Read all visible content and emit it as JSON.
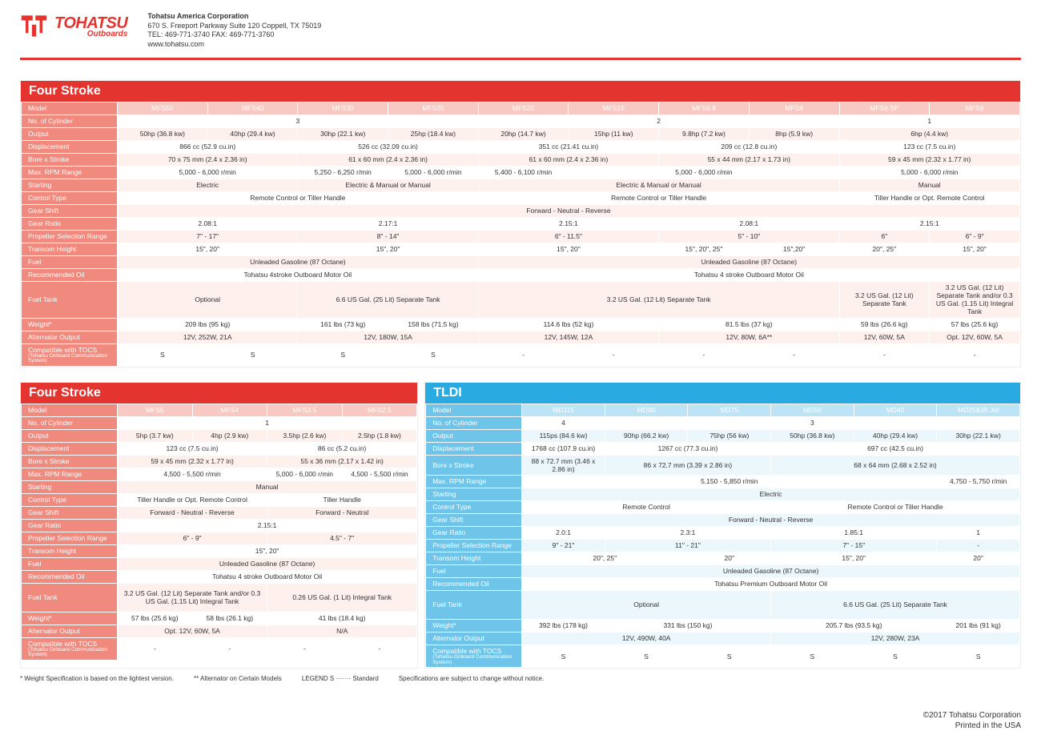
{
  "company": {
    "name": "Tohatsu America Corporation",
    "addr": "670 S. Freeport Parkway Suite 120 Coppell, TX 75019",
    "tel": "TEL: 469-771-3740 FAX: 469-771-3760",
    "web": "www.tohatsu.com"
  },
  "logo": {
    "brand": "TOHATSU",
    "sub": "Outboards"
  },
  "sheet1": {
    "title": "Four Stroke",
    "models": [
      "MFS50",
      "MFS40",
      "MFS30",
      "MFS25",
      "MFS20",
      "MFS15",
      "MFS9.8",
      "MFS8",
      "MFS6 SP",
      "MFS6"
    ],
    "rows": [
      {
        "l": "No. of Cylinder",
        "c": [
          {
            "t": "3",
            "s": 4
          },
          {
            "t": "2",
            "s": 4
          },
          {
            "t": "1",
            "s": 2
          }
        ]
      },
      {
        "l": "Output",
        "c": [
          {
            "t": "50hp (36.8 kw)"
          },
          {
            "t": "40hp (29.4 kw)"
          },
          {
            "t": "30hp (22.1 kw)"
          },
          {
            "t": "25hp (18.4 kw)"
          },
          {
            "t": "20hp (14.7 kw)"
          },
          {
            "t": "15hp (11 kw)"
          },
          {
            "t": "9.8hp (7.2 kw)"
          },
          {
            "t": "8hp (5.9 kw)"
          },
          {
            "t": "6hp (4.4 kw)",
            "s": 2
          }
        ]
      },
      {
        "l": "Displacement",
        "c": [
          {
            "t": "866 cc (52.9 cu.in)",
            "s": 2
          },
          {
            "t": "526 cc (32.09 cu.in)",
            "s": 2
          },
          {
            "t": "351 cc  (21.41 cu.in)",
            "s": 2
          },
          {
            "t": "209 cc  (12.8 cu.in)",
            "s": 2
          },
          {
            "t": "123 cc (7.5 cu.in)",
            "s": 2
          }
        ]
      },
      {
        "l": "Bore x Stroke",
        "c": [
          {
            "t": "70 x 75 mm (2.4 x 2.36 in)",
            "s": 2
          },
          {
            "t": "61 x 60 mm (2.4 x 2.36 in)",
            "s": 2
          },
          {
            "t": "61 x 60 mm (2.4 x 2.36 in)",
            "s": 2
          },
          {
            "t": "55 x 44 mm (2.17 x 1.73 in)",
            "s": 2
          },
          {
            "t": "59 x 45 mm  (2.32 x 1.77 in)",
            "s": 2
          }
        ]
      },
      {
        "l": "Max. RPM Range",
        "c": [
          {
            "t": "5,000 - 6,000 r/min",
            "s": 2
          },
          {
            "t": "5,250 - 6,250 r/min"
          },
          {
            "t": "5,000 - 6,000 r/min"
          },
          {
            "t": "5,400 - 6,100 r/min"
          },
          {
            "t": "5,000 - 6,000 r/min",
            "s": 3
          },
          {
            "t": "",
            "s": 0
          },
          {
            "t": "5,000 - 6,000 r/min",
            "s": 2
          }
        ]
      },
      {
        "l": "Starting",
        "c": [
          {
            "t": "Electric",
            "s": 2
          },
          {
            "t": "Electric & Manual or Manual",
            "s": 2
          },
          {
            "t": "Electric & Manual or Manual",
            "s": 4
          },
          {
            "t": "Manual",
            "s": 2
          }
        ]
      },
      {
        "l": "Control Type",
        "c": [
          {
            "t": "Remote Control or Tiller Handle",
            "s": 4
          },
          {
            "t": "Remote Control or Tiller Handle",
            "s": 4
          },
          {
            "t": "Tiller Handle or Opt. Remote Control",
            "s": 2
          }
        ]
      },
      {
        "l": "Gear Shift",
        "c": [
          {
            "t": "Forward - Neutral - Reverse",
            "s": 10
          }
        ]
      },
      {
        "l": "Gear Ratio",
        "c": [
          {
            "t": "2.08:1",
            "s": 2
          },
          {
            "t": "2.17:1",
            "s": 2
          },
          {
            "t": "2.15:1",
            "s": 2
          },
          {
            "t": "2.08:1",
            "s": 2
          },
          {
            "t": "2.15:1",
            "s": 2
          }
        ]
      },
      {
        "l": "Propeller Selection Range",
        "c": [
          {
            "t": "7\" - 17\"",
            "s": 2
          },
          {
            "t": "8\" - 14\"",
            "s": 2
          },
          {
            "t": "6\" - 11.5\"",
            "s": 2
          },
          {
            "t": "5\" - 10\"",
            "s": 2
          },
          {
            "t": "6\""
          },
          {
            "t": "6\" - 9\""
          }
        ]
      },
      {
        "l": "Transom Height",
        "c": [
          {
            "t": "15\", 20\"",
            "s": 2
          },
          {
            "t": "15\", 20\"",
            "s": 2
          },
          {
            "t": "15\", 20\"",
            "s": 2
          },
          {
            "t": "15\", 20\", 25\""
          },
          {
            "t": "15\",20\""
          },
          {
            "t": "20\", 25\""
          },
          {
            "t": "15\", 20\""
          }
        ]
      },
      {
        "l": "Fuel",
        "c": [
          {
            "t": "Unleaded Gasoline (87 Octane)",
            "s": 4
          },
          {
            "t": "Unleaded Gasoline (87 Octane)",
            "s": 6
          }
        ]
      },
      {
        "l": "Recommended Oil",
        "c": [
          {
            "t": "Tohatsu 4stroke Outboard Motor Oil",
            "s": 4
          },
          {
            "t": "Tohatsu 4 stroke Outboard Motor Oil",
            "s": 6
          }
        ]
      },
      {
        "l": "Fuel Tank",
        "h": 1,
        "c": [
          {
            "t": "Optional",
            "s": 2
          },
          {
            "t": "6.6 US Gal. (25 Lit) Separate Tank",
            "s": 2
          },
          {
            "t": "3.2 US Gal. (12 Lit) Separate Tank",
            "s": 4
          },
          {
            "t": "3.2 US Gal. (12 Lit) Separate Tank"
          },
          {
            "t": "3.2 US Gal. (12 Lit) Separate Tank and/or 0.3 US Gal. (1.15 Lit) Integral Tank"
          }
        ]
      },
      {
        "l": "Weight*",
        "c": [
          {
            "t": "209 lbs (95 kg)",
            "s": 2
          },
          {
            "t": "161 lbs (73 kg)"
          },
          {
            "t": "158 lbs (71.5 kg)"
          },
          {
            "t": "114.6 lbs (52 kg)",
            "s": 2
          },
          {
            "t": "81.5 lbs (37 kg)",
            "s": 2
          },
          {
            "t": "59 lbs (26.6 kg)"
          },
          {
            "t": "57 lbs (25.6 kg)"
          }
        ]
      },
      {
        "l": "Alternator Output",
        "c": [
          {
            "t": "12V, 252W, 21A",
            "s": 2
          },
          {
            "t": "12V, 180W, 15A",
            "s": 2
          },
          {
            "t": "12V, 145W, 12A",
            "s": 2
          },
          {
            "t": "12V, 80W, 6A**",
            "s": 2
          },
          {
            "t": "12V, 60W, 5A"
          },
          {
            "t": "Opt. 12V, 60W, 5A"
          }
        ]
      },
      {
        "l": "Compatible with TOCS",
        "sub": "(Tohatsu Onboard Communication System)",
        "c": [
          {
            "t": "S"
          },
          {
            "t": "S"
          },
          {
            "t": "S"
          },
          {
            "t": "S"
          },
          {
            "t": "-"
          },
          {
            "t": "-"
          },
          {
            "t": "-"
          },
          {
            "t": "-"
          },
          {
            "t": "-"
          },
          {
            "t": "-"
          }
        ]
      }
    ]
  },
  "sheet2": {
    "title": "Four Stroke",
    "models": [
      "MFS5",
      "MFS4",
      "MFS3.5",
      "MFS2.5"
    ],
    "rows": [
      {
        "l": "No. of Cylinder",
        "c": [
          {
            "t": "1",
            "s": 4
          }
        ]
      },
      {
        "l": "Output",
        "c": [
          {
            "t": "5hp (3.7 kw)"
          },
          {
            "t": "4hp (2.9 kw)"
          },
          {
            "t": "3.5hp (2.6 kw)"
          },
          {
            "t": "2.5hp (1.8 kw)"
          }
        ]
      },
      {
        "l": "Displacement",
        "c": [
          {
            "t": "123 cc (7.5 cu.in)",
            "s": 2
          },
          {
            "t": "86 cc  (5.2 cu.in)",
            "s": 2
          }
        ]
      },
      {
        "l": "Bore x Stroke",
        "c": [
          {
            "t": "59 x 45 mm  (2.32 x 1.77 in)",
            "s": 2
          },
          {
            "t": "55 x 36 mm (2.17 x 1.42 in)",
            "s": 2
          }
        ]
      },
      {
        "l": "Max. RPM Range",
        "c": [
          {
            "t": "4,500 - 5,500 r/min",
            "s": 2
          },
          {
            "t": "5,000 - 6,000 r/min"
          },
          {
            "t": "4,500 - 5,500 r/min"
          }
        ]
      },
      {
        "l": "Starting",
        "c": [
          {
            "t": "Manual",
            "s": 4
          }
        ]
      },
      {
        "l": "Control Type",
        "c": [
          {
            "t": "Tiller Handle or Opt. Remote Control",
            "s": 2
          },
          {
            "t": "Tiller Handle",
            "s": 2
          }
        ]
      },
      {
        "l": "Gear Shift",
        "c": [
          {
            "t": "Forward - Neutral - Reverse",
            "s": 2
          },
          {
            "t": "Forward - Neutral",
            "s": 2
          }
        ]
      },
      {
        "l": "Gear Ratio",
        "c": [
          {
            "t": "2.15:1",
            "s": 4
          }
        ]
      },
      {
        "l": "Propeller Selection Range",
        "c": [
          {
            "t": "6\" - 9\"",
            "s": 2
          },
          {
            "t": "4.5\" - 7\"",
            "s": 2
          }
        ]
      },
      {
        "l": "Transom Height",
        "c": [
          {
            "t": "15\", 20\"",
            "s": 4
          }
        ]
      },
      {
        "l": "Fuel",
        "c": [
          {
            "t": "Unleaded Gasoline (87 Octane)",
            "s": 4
          }
        ]
      },
      {
        "l": "Recommended Oil",
        "c": [
          {
            "t": "Tohatsu 4 stroke Outboard Motor Oil",
            "s": 4
          }
        ]
      },
      {
        "l": "Fuel Tank",
        "h": 1,
        "c": [
          {
            "t": "3.2 US Gal. (12 Lit) Separate Tank and/or 0.3 US Gal. (1.15 Lit) Integral Tank",
            "s": 2
          },
          {
            "t": "0.26 US Gal. (1 Lit) Integral Tank",
            "s": 2
          }
        ]
      },
      {
        "l": "Weight*",
        "c": [
          {
            "t": "57 lbs (25.6 kg)"
          },
          {
            "t": "58 lbs (26.1 kg)"
          },
          {
            "t": "41 lbs (18.4 kg)",
            "s": 2
          }
        ]
      },
      {
        "l": "Alternator Output",
        "c": [
          {
            "t": "Opt. 12V, 60W, 5A",
            "s": 2
          },
          {
            "t": "N/A",
            "s": 2
          }
        ]
      },
      {
        "l": "Compatible with TOCS",
        "sub": "(Tohatsu Onboard Communication System)",
        "c": [
          {
            "t": "-"
          },
          {
            "t": "-"
          },
          {
            "t": "-"
          },
          {
            "t": "-"
          }
        ]
      }
    ]
  },
  "sheet3": {
    "title": "TLDI",
    "models": [
      "MD115",
      "MD90",
      "MD75",
      "MD50",
      "MD40",
      "MD25&35 Jet"
    ],
    "rows": [
      {
        "l": "No. of Cylinder",
        "c": [
          {
            "t": "4"
          },
          {
            "t": "3",
            "s": 5
          }
        ]
      },
      {
        "l": "Output",
        "c": [
          {
            "t": "115ps (84.6 kw)"
          },
          {
            "t": "90hp (66.2 kw)"
          },
          {
            "t": "75hp (56 kw)"
          },
          {
            "t": "50hp (36.8 kw)"
          },
          {
            "t": "40hp (29.4 kw)"
          },
          {
            "t": "30hp (22.1 kw)"
          }
        ]
      },
      {
        "l": "Displacement",
        "c": [
          {
            "t": "1768 cc (107.9 cu.in)"
          },
          {
            "t": "1267 cc (77.3 cu.in)",
            "s": 2
          },
          {
            "t": "697 cc (42.5 cu.in)",
            "s": 3
          }
        ]
      },
      {
        "l": "Bore x Stroke",
        "c": [
          {
            "t": "88 x 72.7 mm (3.46 x 2.86 in)"
          },
          {
            "t": "86 x 72.7 mm (3.39 x 2.86 in)",
            "s": 2
          },
          {
            "t": "68 x 64 mm (2.68 x 2.52 in)",
            "s": 3
          }
        ]
      },
      {
        "l": "Max. RPM Range",
        "c": [
          {
            "t": "5,150 - 5,850 r/min",
            "s": 5
          },
          {
            "t": "4,750 - 5,750 r/min"
          }
        ]
      },
      {
        "l": "Starting",
        "c": [
          {
            "t": "Electric",
            "s": 6
          }
        ]
      },
      {
        "l": "Control Type",
        "c": [
          {
            "t": "Remote Control",
            "s": 3
          },
          {
            "t": "Remote Control or Tiller Handle",
            "s": 3
          }
        ]
      },
      {
        "l": "Gear Shift",
        "c": [
          {
            "t": "Forward - Neutral - Reverse",
            "s": 6
          }
        ]
      },
      {
        "l": "Gear Ratio",
        "c": [
          {
            "t": "2.0:1"
          },
          {
            "t": "2.3:1",
            "s": 2
          },
          {
            "t": "1.85:1",
            "s": 2
          },
          {
            "t": "1"
          }
        ]
      },
      {
        "l": "Propeller Selection Range",
        "c": [
          {
            "t": "9\" - 21\""
          },
          {
            "t": "11\" - 21\"",
            "s": 2
          },
          {
            "t": "7\" - 15\"",
            "s": 2
          },
          {
            "t": "-"
          }
        ]
      },
      {
        "l": "Transom Height",
        "c": [
          {
            "t": "20\", 25\"",
            "s": 2
          },
          {
            "t": "20\""
          },
          {
            "t": "15\", 20\"",
            "s": 2
          },
          {
            "t": "20\""
          }
        ]
      },
      {
        "l": "Fuel",
        "c": [
          {
            "t": "Unleaded Gasoline (87 Octane)",
            "s": 6
          }
        ]
      },
      {
        "l": "Recommended Oil",
        "c": [
          {
            "t": "Tohatsu Premium Outboard Motor Oil",
            "s": 6
          }
        ]
      },
      {
        "l": "Fuel Tank",
        "h": 1,
        "c": [
          {
            "t": "Optional",
            "s": 3
          },
          {
            "t": "6.6 US Gal. (25 Lit) Separate Tank",
            "s": 3
          }
        ]
      },
      {
        "l": "Weight*",
        "c": [
          {
            "t": "392 lbs (178 kg)"
          },
          {
            "t": "331 lbs (150 kg)",
            "s": 2
          },
          {
            "t": "205.7 lbs (93.5 kg)",
            "s": 2
          },
          {
            "t": "201 lbs (91 kg)"
          }
        ]
      },
      {
        "l": "Alternator Output",
        "c": [
          {
            "t": "12V, 490W, 40A",
            "s": 3
          },
          {
            "t": "12V, 280W, 23A",
            "s": 3
          }
        ]
      },
      {
        "l": "Compatible with TOCS",
        "sub": "(Tohatsu Onboard Communication System)",
        "c": [
          {
            "t": "S"
          },
          {
            "t": "S"
          },
          {
            "t": "S"
          },
          {
            "t": "S"
          },
          {
            "t": "S"
          },
          {
            "t": "S"
          }
        ]
      }
    ]
  },
  "footnotes": [
    "* Weight Specification is based on the lightest version.",
    "** Alternator on Certain Models",
    "LEGEND   S ······· Standard",
    "Specifications are subject to change without notice."
  ],
  "copyright": {
    "l1": "©2017 Tohatsu Corporation",
    "l2": "Printed in the USA"
  }
}
